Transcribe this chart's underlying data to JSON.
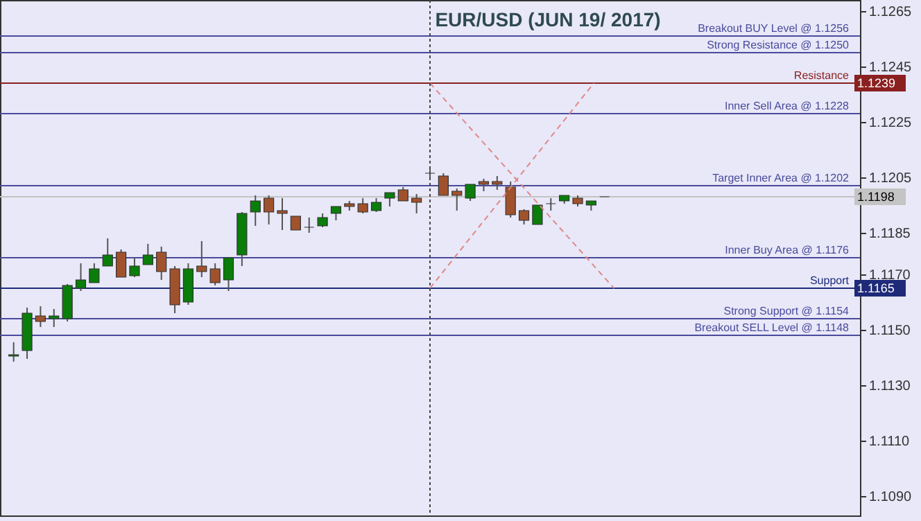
{
  "chart_data": {
    "type": "candlestick",
    "title": "EUR/USD (JUN 19/ 2017)",
    "categories": [
      null,
      null,
      null,
      null,
      null,
      null,
      null,
      null,
      null,
      null,
      null,
      null,
      null,
      null,
      null,
      null,
      null,
      null,
      null,
      null,
      null,
      null,
      null,
      null,
      null,
      null,
      null,
      null,
      null,
      null,
      null,
      null,
      null,
      null,
      null,
      null,
      null,
      null,
      null,
      null,
      null,
      null,
      null,
      null,
      null,
      null,
      null,
      null,
      null,
      null,
      null,
      null,
      null,
      null,
      null,
      null,
      null,
      null,
      null,
      null,
      null,
      null,
      null
    ],
    "ohlc": [
      [
        1.11405,
        1.11455,
        1.11385,
        1.1141
      ],
      [
        1.11425,
        1.1158,
        1.11395,
        1.1156
      ],
      [
        1.1155,
        1.11585,
        1.1151,
        1.1153
      ],
      [
        1.1154,
        1.11575,
        1.1151,
        1.1155
      ],
      [
        1.1154,
        1.11665,
        1.1153,
        1.1166
      ],
      [
        1.1165,
        1.1174,
        1.1164,
        1.1168
      ],
      [
        1.1167,
        1.1174,
        1.1167,
        1.1172
      ],
      [
        1.1173,
        1.1183,
        1.1173,
        1.1177
      ],
      [
        1.1178,
        1.1179,
        1.1169,
        1.1169
      ],
      [
        1.11695,
        1.1176,
        1.1169,
        1.1173
      ],
      [
        1.11735,
        1.1181,
        1.11735,
        1.1177
      ],
      [
        1.1178,
        1.118,
        1.1168,
        1.1171
      ],
      [
        1.1172,
        1.1173,
        1.1156,
        1.1159
      ],
      [
        1.116,
        1.1174,
        1.1159,
        1.1172
      ],
      [
        1.1173,
        1.1182,
        1.1169,
        1.1171
      ],
      [
        1.1172,
        1.1174,
        1.1166,
        1.1167
      ],
      [
        1.1168,
        1.1176,
        1.1164,
        1.1176
      ],
      [
        1.1177,
        1.11925,
        1.1173,
        1.1192
      ],
      [
        1.11925,
        1.11985,
        1.11875,
        1.11965
      ],
      [
        1.11975,
        1.11985,
        1.1188,
        1.11925
      ],
      [
        1.1193,
        1.11975,
        1.1186,
        1.1192
      ],
      [
        1.1191,
        1.1191,
        1.1186,
        1.1186
      ],
      [
        1.1187,
        1.11905,
        1.1185,
        1.1187
      ],
      [
        1.11875,
        1.1192,
        1.1187,
        1.11905
      ],
      [
        1.1192,
        1.11945,
        1.11895,
        1.11945
      ],
      [
        1.11955,
        1.11965,
        1.1193,
        1.11945
      ],
      [
        1.11955,
        1.11975,
        1.1192,
        1.11925
      ],
      [
        1.1193,
        1.11975,
        1.11925,
        1.1196
      ],
      [
        1.11975,
        1.11995,
        1.11945,
        1.11995
      ],
      [
        1.12005,
        1.12015,
        1.11965,
        1.11965
      ],
      [
        1.11975,
        1.1199,
        1.1192,
        1.1196
      ],
      [
        1.12065,
        1.12085,
        1.12045,
        1.12065
      ],
      [
        1.12055,
        1.12065,
        1.11985,
        1.11985
      ],
      [
        1.12,
        1.1201,
        1.1193,
        1.11985
      ],
      [
        1.11975,
        1.12025,
        1.11965,
        1.12025
      ],
      [
        1.12035,
        1.12045,
        1.12,
        1.12025
      ],
      [
        1.12035,
        1.12055,
        1.12005,
        1.12025
      ],
      [
        1.12015,
        1.12035,
        1.11905,
        1.11915
      ],
      [
        1.1193,
        1.11935,
        1.1188,
        1.11895
      ],
      [
        1.1188,
        1.1195,
        1.1188,
        1.1195
      ],
      [
        1.11955,
        1.11975,
        1.1193,
        1.11955
      ],
      [
        1.11965,
        1.11985,
        1.11955,
        1.11985
      ],
      [
        1.11975,
        1.11985,
        1.11945,
        1.11955
      ],
      [
        1.1195,
        1.11965,
        1.1193,
        1.11965
      ],
      [
        1.1198,
        1.1198,
        1.1198,
        1.1198
      ],
      null,
      null,
      null,
      null,
      null,
      null,
      null,
      null,
      null,
      null,
      null,
      null,
      null,
      null,
      null,
      null,
      null,
      null
    ],
    "colors": [
      "#0a7d0a",
      "#0a7d0a",
      "#a0522d",
      "#0a7d0a",
      "#0a7d0a",
      "#0a7d0a",
      "#0a7d0a",
      "#0a7d0a",
      "#a0522d",
      "#0a7d0a",
      "#0a7d0a",
      "#a0522d",
      "#a0522d",
      "#0a7d0a",
      "#a0522d",
      "#a0522d",
      "#0a7d0a",
      "#0a7d0a",
      "#0a7d0a",
      "#a0522d",
      "#a0522d",
      "#a0522d",
      "#333333",
      "#0a7d0a",
      "#0a7d0a",
      "#a0522d",
      "#a0522d",
      "#0a7d0a",
      "#0a7d0a",
      "#a0522d",
      "#a0522d",
      "#333333",
      "#a0522d",
      "#a0522d",
      "#0a7d0a",
      "#a0522d",
      "#a0522d",
      "#a0522d",
      "#a0522d",
      "#0a7d0a",
      "#333333",
      "#0a7d0a",
      "#a0522d",
      "#0a7d0a",
      "#333333",
      null,
      null,
      null,
      null,
      null,
      null,
      null,
      null,
      null,
      null,
      null,
      null,
      null,
      null,
      null,
      null,
      null,
      null
    ],
    "ref_lines": [
      {
        "axis": "y",
        "value": 1.1239,
        "label": "Resistance",
        "color": "#8b2020"
      },
      {
        "axis": "y",
        "value": 1.1165,
        "label": "Support",
        "color": "#1e2a78"
      },
      {
        "axis": "y",
        "value": 1.1198,
        "color": "#c4c4c4"
      },
      {
        "axis": "y",
        "value": 1.1256,
        "label": "Breakout BUY Level @ 1.1256",
        "color": "#4a4a9c"
      },
      {
        "axis": "y",
        "value": 1.125,
        "label": "Strong Resistance @  1.1250",
        "color": "#4a4a9c"
      },
      {
        "axis": "y",
        "value": 1.1228,
        "label": "Inner Sell Area @ 1.1228",
        "color": "#4a4a9c"
      },
      {
        "axis": "y",
        "value": 1.1202,
        "label": "Target Inner Area @ 1.1202",
        "color": "#4a4a9c"
      },
      {
        "axis": "y",
        "value": 1.1176,
        "label": "Inner Buy Area  @ 1.1176",
        "color": "#4a4a9c"
      },
      {
        "axis": "y",
        "value": 1.1154,
        "label": "Strong Support  @  1.1154",
        "color": "#4a4a9c"
      },
      {
        "axis": "y",
        "value": 1.1148,
        "label": "Breakout SELL Level  @ 1.1148",
        "color": "#4a4a9c"
      }
    ],
    "annotations": [
      "1.1239",
      "1.1198",
      "1.1165"
    ],
    "ylim": [
      1.1083,
      1.1269
    ],
    "yticks": [
      1.1265,
      1.1245,
      1.1225,
      1.1205,
      1.1185,
      {
        "value": 1.117,
        "label": "1.1170"
      },
      {
        "value": 1.115,
        "label": "1.1150"
      },
      {
        "value": 1.113,
        "label": "1.1130"
      },
      {
        "value": 1.111,
        "label": "1.1110"
      },
      {
        "value": 1.109,
        "label": "1.1090"
      }
    ],
    "tick_labels": "y",
    "grid": false
  }
}
